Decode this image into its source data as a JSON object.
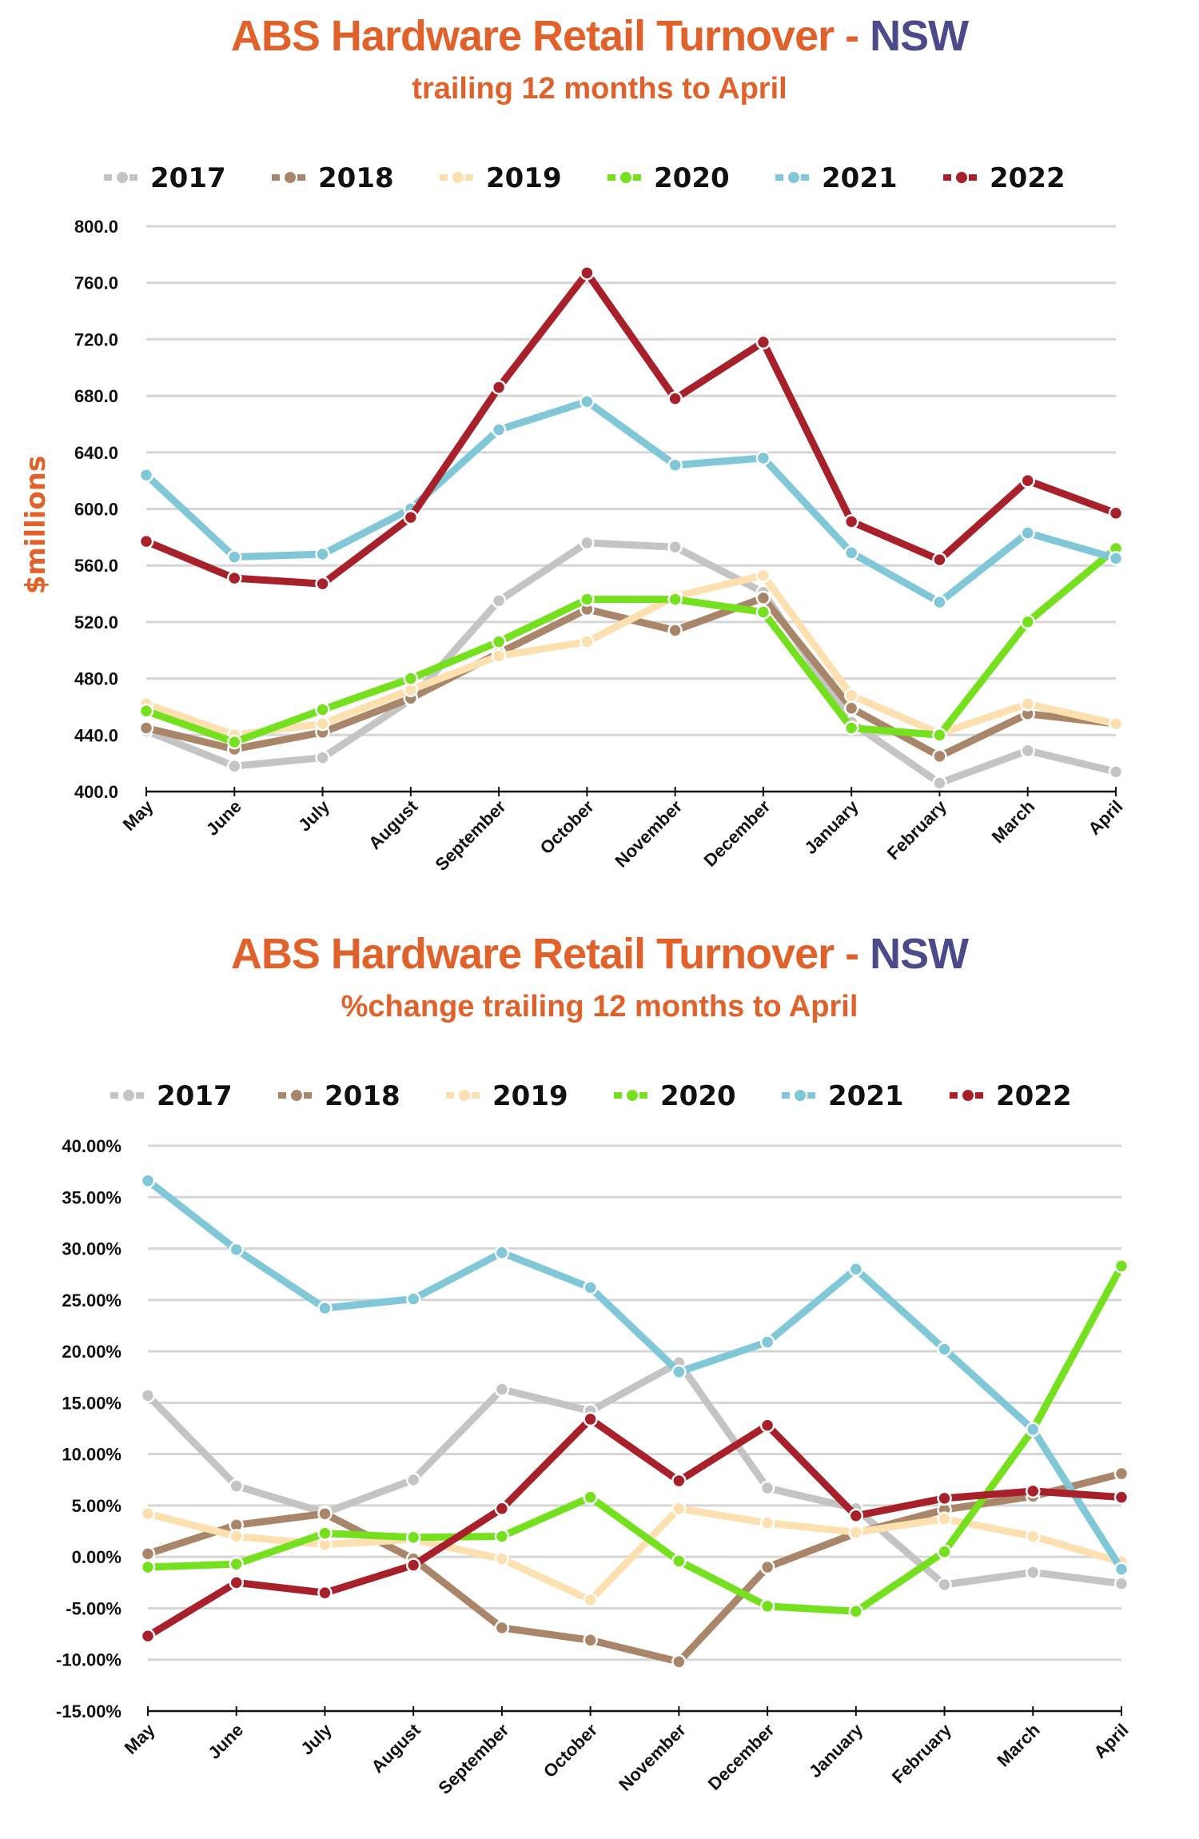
{
  "chart_data": [
    {
      "type": "line",
      "title": "ABS Hardware Retail Turnover - ",
      "title_highlight": "NSW",
      "subtitle": "trailing 12 months to April",
      "ylabel": "$millions",
      "xlabel": "",
      "ylim": [
        400,
        800
      ],
      "yticks": [
        "800.0",
        "760.0",
        "720.0",
        "680.0",
        "640.0",
        "600.0",
        "560.0",
        "520.0",
        "480.0",
        "440.0",
        "400.0"
      ],
      "ytick_values": [
        800,
        760,
        720,
        680,
        640,
        600,
        560,
        520,
        480,
        440,
        400
      ],
      "categories": [
        "May",
        "June",
        "July",
        "August",
        "September",
        "October",
        "November",
        "December",
        "January",
        "February",
        "March",
        "April"
      ],
      "legend_position": "top",
      "grid": true,
      "series": [
        {
          "name": "2017",
          "color": "#C4C4C4",
          "values": [
            443,
            418,
            424,
            465,
            535,
            576,
            573,
            541,
            449,
            406,
            429,
            414
          ]
        },
        {
          "name": "2018",
          "color": "#A9856A",
          "values": [
            445,
            430,
            442,
            466,
            498,
            529,
            514,
            537,
            459,
            425,
            455,
            448
          ]
        },
        {
          "name": "2019",
          "color": "#FCE0B0",
          "values": [
            462,
            440,
            448,
            472,
            496,
            506,
            538,
            553,
            468,
            441,
            462,
            448
          ]
        },
        {
          "name": "2020",
          "color": "#74E01E",
          "values": [
            457,
            435,
            458,
            480,
            506,
            536,
            536,
            527,
            445,
            440,
            520,
            572
          ]
        },
        {
          "name": "2021",
          "color": "#80C8D8",
          "values": [
            624,
            566,
            568,
            600,
            656,
            676,
            631,
            636,
            569,
            534,
            583,
            565
          ]
        },
        {
          "name": "2022",
          "color": "#A8202A",
          "values": [
            577,
            551,
            547,
            594,
            686,
            767,
            678,
            718,
            591,
            564,
            620,
            597
          ]
        }
      ]
    },
    {
      "type": "line",
      "title": "ABS Hardware Retail Turnover - ",
      "title_highlight": "NSW",
      "subtitle": "%change trailing 12 months to April",
      "ylabel": "",
      "xlabel": "",
      "ylim": [
        -15,
        40
      ],
      "yticks": [
        "40.00%",
        "35.00%",
        "30.00%",
        "25.00%",
        "20.00%",
        "15.00%",
        "10.00%",
        "5.00%",
        "0.00%",
        "-5.00%",
        "-10.00%",
        "-15.00%"
      ],
      "ytick_values": [
        40,
        35,
        30,
        25,
        20,
        15,
        10,
        5,
        0,
        -5,
        -10,
        -15
      ],
      "categories": [
        "May",
        "June",
        "July",
        "August",
        "September",
        "October",
        "November",
        "December",
        "January",
        "February",
        "March",
        "April"
      ],
      "legend_position": "top",
      "grid": true,
      "series": [
        {
          "name": "2017",
          "color": "#C4C4C4",
          "values": [
            15.7,
            6.9,
            4.3,
            7.5,
            16.3,
            14.2,
            18.9,
            6.7,
            4.7,
            -2.7,
            -1.5,
            -2.6
          ]
        },
        {
          "name": "2018",
          "color": "#A9856A",
          "values": [
            0.3,
            3.1,
            4.2,
            -0.2,
            -6.9,
            -8.1,
            -10.2,
            -1.0,
            2.3,
            4.6,
            5.9,
            8.1
          ]
        },
        {
          "name": "2019",
          "color": "#FCE0B0",
          "values": [
            4.2,
            2.0,
            1.2,
            1.7,
            -0.2,
            -4.2,
            4.7,
            3.3,
            2.4,
            3.7,
            2.0,
            -0.5
          ]
        },
        {
          "name": "2020",
          "color": "#74E01E",
          "values": [
            -1.0,
            -0.7,
            2.3,
            1.9,
            2.0,
            5.8,
            -0.4,
            -4.8,
            -5.3,
            0.5,
            12.4,
            28.3
          ]
        },
        {
          "name": "2021",
          "color": "#80C8D8",
          "values": [
            36.6,
            29.9,
            24.2,
            25.1,
            29.6,
            26.2,
            18.0,
            20.9,
            28.0,
            20.2,
            12.4,
            -1.2
          ]
        },
        {
          "name": "2022",
          "color": "#A8202A",
          "values": [
            -7.7,
            -2.5,
            -3.5,
            -0.8,
            4.7,
            13.4,
            7.4,
            12.8,
            4.0,
            5.7,
            6.4,
            5.8
          ]
        }
      ]
    }
  ]
}
